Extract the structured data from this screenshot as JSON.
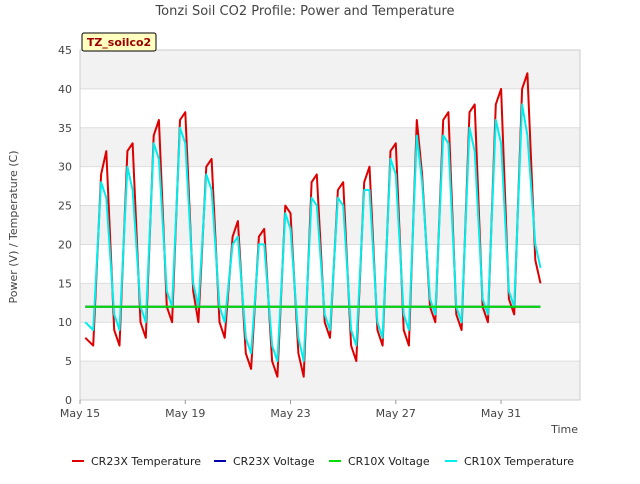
{
  "chart_data": {
    "type": "line",
    "title": "Tonzi Soil CO2 Profile: Power and Temperature",
    "xlabel": "Time",
    "ylabel": "Power (V) / Temperature (C)",
    "xlim": [
      "2023-05-15",
      "2023-06-03"
    ],
    "ylim": [
      0,
      45
    ],
    "x_ticks": [
      {
        "label": "May 15",
        "day": 0
      },
      {
        "label": "May 19",
        "day": 4
      },
      {
        "label": "May 23",
        "day": 8
      },
      {
        "label": "May 27",
        "day": 12
      },
      {
        "label": "May 31",
        "day": 16
      }
    ],
    "y_ticks": [
      0,
      5,
      10,
      15,
      20,
      25,
      30,
      35,
      40,
      45
    ],
    "grid": "horizontal bands",
    "legend_position": "bottom",
    "annotation": "TZ_soilco2",
    "series": [
      {
        "name": "CR23X Temperature",
        "color": "#dd0000",
        "x": [
          0.2,
          0.5,
          0.8,
          1.0,
          1.3,
          1.5,
          1.8,
          2.0,
          2.3,
          2.5,
          2.8,
          3.0,
          3.3,
          3.5,
          3.8,
          4.0,
          4.3,
          4.5,
          4.8,
          5.0,
          5.3,
          5.5,
          5.8,
          6.0,
          6.3,
          6.5,
          6.8,
          7.0,
          7.3,
          7.5,
          7.8,
          8.0,
          8.3,
          8.5,
          8.8,
          9.0,
          9.3,
          9.5,
          9.8,
          10.0,
          10.3,
          10.5,
          10.8,
          11.0,
          11.3,
          11.5,
          11.8,
          12.0,
          12.3,
          12.5,
          12.8,
          13.0,
          13.3,
          13.5,
          13.8,
          14.0,
          14.3,
          14.5,
          14.8,
          15.0,
          15.3,
          15.5,
          15.8,
          16.0,
          16.3,
          16.5,
          16.8,
          17.0,
          17.3,
          17.5
        ],
        "y": [
          8,
          7,
          29,
          32,
          9,
          7,
          32,
          33,
          10,
          8,
          34,
          36,
          12,
          10,
          36,
          37,
          14,
          10,
          30,
          31,
          10,
          8,
          21,
          23,
          6,
          4,
          21,
          22,
          5,
          3,
          25,
          24,
          6,
          3,
          28,
          29,
          10,
          8,
          27,
          28,
          7,
          5,
          28,
          30,
          9,
          7,
          32,
          33,
          9,
          7,
          36,
          29,
          12,
          10,
          36,
          37,
          11,
          9,
          37,
          38,
          12,
          10,
          38,
          40,
          13,
          11,
          40,
          42,
          18,
          15
        ]
      },
      {
        "name": "CR23X Voltage",
        "color": "#0000aa",
        "x": [
          0.2,
          17.5
        ],
        "y": [
          12,
          12
        ]
      },
      {
        "name": "CR10X Voltage",
        "color": "#00dd00",
        "x": [
          0.2,
          17.5
        ],
        "y": [
          12,
          12
        ]
      },
      {
        "name": "CR10X Temperature",
        "color": "#00eeee",
        "x": [
          0.2,
          0.5,
          0.8,
          1.0,
          1.3,
          1.5,
          1.8,
          2.0,
          2.3,
          2.5,
          2.8,
          3.0,
          3.3,
          3.5,
          3.8,
          4.0,
          4.3,
          4.5,
          4.8,
          5.0,
          5.3,
          5.5,
          5.8,
          6.0,
          6.3,
          6.5,
          6.8,
          7.0,
          7.3,
          7.5,
          7.8,
          8.0,
          8.3,
          8.5,
          8.8,
          9.0,
          9.3,
          9.5,
          9.8,
          10.0,
          10.3,
          10.5,
          10.8,
          11.0,
          11.3,
          11.5,
          11.8,
          12.0,
          12.3,
          12.5,
          12.8,
          13.0,
          13.3,
          13.5,
          13.8,
          14.0,
          14.3,
          14.5,
          14.8,
          15.0,
          15.3,
          15.5,
          15.8,
          16.0,
          16.3,
          16.5,
          16.8,
          17.0,
          17.3,
          17.5
        ],
        "y": [
          10,
          9,
          28,
          26,
          11,
          9,
          30,
          27,
          12,
          10,
          33,
          31,
          14,
          12,
          35,
          33,
          15,
          12,
          29,
          27,
          12,
          10,
          20,
          21,
          8,
          6,
          20,
          20,
          7,
          5,
          24,
          22,
          8,
          5,
          26,
          25,
          11,
          9,
          26,
          25,
          9,
          7,
          27,
          27,
          10,
          8,
          31,
          29,
          11,
          9,
          34,
          28,
          13,
          11,
          34,
          33,
          12,
          10,
          35,
          32,
          13,
          11,
          36,
          33,
          14,
          12,
          38,
          34,
          20,
          17
        ]
      }
    ]
  }
}
